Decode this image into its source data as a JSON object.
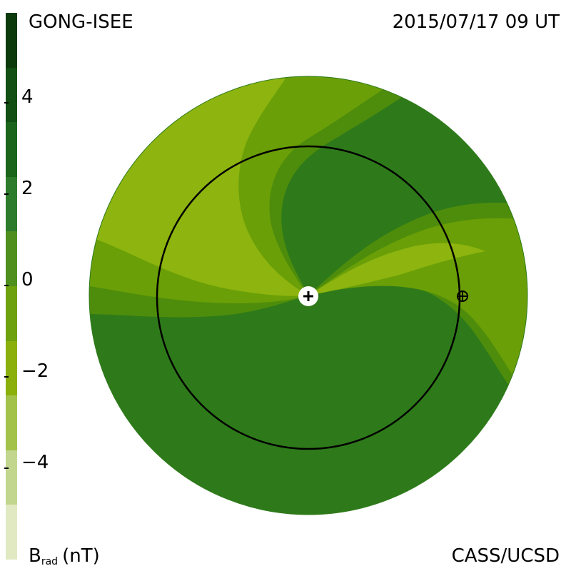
{
  "header": {
    "source": "GONG-ISEE",
    "datetime": "2015/07/17 09 UT"
  },
  "footer": {
    "units_main": "B",
    "units_sub": "rad",
    "units_suffix": "(nT)",
    "credit": "CASS/UCSD"
  },
  "colorbar": {
    "tick_labels": [
      "4",
      "2",
      "0",
      "−2",
      "−4"
    ],
    "colors": [
      "#0d3a0d",
      "#124f12",
      "#1a651a",
      "#2c7c2c",
      "#4f8f1e",
      "#6ea10e",
      "#8cb00b",
      "#a3c24b",
      "#c3d68d",
      "#e1e9c3"
    ]
  },
  "map": {
    "colors": {
      "dark_green": "#2e7a1a",
      "mid_green": "#4e8d0b",
      "light_mid_green": "#6a9f07",
      "light_green": "#8db40f",
      "black": "#000000",
      "white": "#ffffff"
    },
    "sun_marker": "sun-plus-icon",
    "earth_marker": "earth-circle-cross-icon"
  }
}
